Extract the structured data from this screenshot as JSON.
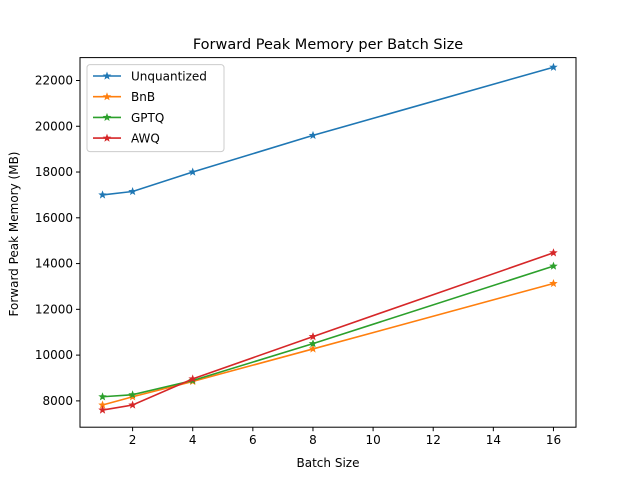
{
  "chart_data": {
    "type": "line",
    "title": "Forward Peak Memory per Batch Size",
    "xlabel": "Batch Size",
    "ylabel": "Forward Peak Memory (MB)",
    "xlim": [
      0.25,
      16.75
    ],
    "ylim": [
      6850,
      23000
    ],
    "xticks": [
      2,
      4,
      6,
      8,
      10,
      12,
      14,
      16
    ],
    "yticks": [
      8000,
      10000,
      12000,
      14000,
      16000,
      18000,
      20000,
      22000
    ],
    "grid": false,
    "legend_position": "top-left",
    "marker": "star",
    "x": [
      1,
      2,
      4,
      8,
      16
    ],
    "series": [
      {
        "name": "Unquantized",
        "color": "#1f77b4",
        "values": [
          17000,
          17150,
          18000,
          19600,
          22580
        ]
      },
      {
        "name": "BnB",
        "color": "#ff7f0e",
        "values": [
          7820,
          8180,
          8850,
          10270,
          13130
        ]
      },
      {
        "name": "GPTQ",
        "color": "#2ca02c",
        "values": [
          8180,
          8270,
          8890,
          10500,
          13890
        ]
      },
      {
        "name": "AWQ",
        "color": "#d62728",
        "values": [
          7600,
          7820,
          8960,
          10810,
          14470
        ]
      }
    ]
  }
}
